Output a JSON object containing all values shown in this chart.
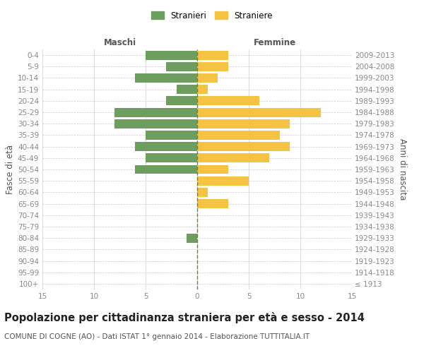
{
  "age_groups": [
    "100+",
    "95-99",
    "90-94",
    "85-89",
    "80-84",
    "75-79",
    "70-74",
    "65-69",
    "60-64",
    "55-59",
    "50-54",
    "45-49",
    "40-44",
    "35-39",
    "30-34",
    "25-29",
    "20-24",
    "15-19",
    "10-14",
    "5-9",
    "0-4"
  ],
  "birth_years": [
    "≤ 1913",
    "1914-1918",
    "1919-1923",
    "1924-1928",
    "1929-1933",
    "1934-1938",
    "1939-1943",
    "1944-1948",
    "1949-1953",
    "1954-1958",
    "1959-1963",
    "1964-1968",
    "1969-1973",
    "1974-1978",
    "1979-1983",
    "1984-1988",
    "1989-1993",
    "1994-1998",
    "1999-2003",
    "2004-2008",
    "2009-2013"
  ],
  "males": [
    0,
    0,
    0,
    0,
    1,
    0,
    0,
    0,
    0,
    0,
    6,
    5,
    6,
    5,
    8,
    8,
    3,
    2,
    6,
    3,
    5
  ],
  "females": [
    0,
    0,
    0,
    0,
    0,
    0,
    0,
    3,
    1,
    5,
    3,
    7,
    9,
    8,
    9,
    12,
    6,
    1,
    2,
    3,
    3
  ],
  "male_color": "#6e9e5f",
  "female_color": "#f5c242",
  "male_label": "Stranieri",
  "female_label": "Straniere",
  "title": "Popolazione per cittadinanza straniera per età e sesso - 2014",
  "subtitle": "COMUNE DI COGNE (AO) - Dati ISTAT 1° gennaio 2014 - Elaborazione TUTTITALIA.IT",
  "xlabel_left": "Maschi",
  "xlabel_right": "Femmine",
  "ylabel_left": "Fasce di età",
  "ylabel_right": "Anni di nascita",
  "xlim": 15,
  "background_color": "#ffffff",
  "grid_color": "#cccccc",
  "bar_height": 0.8,
  "center_line_color": "#7a7a3a",
  "axis_label_color": "#555555",
  "tick_label_color": "#888888",
  "title_fontsize": 10.5,
  "subtitle_fontsize": 7.5,
  "label_fontsize": 8.5,
  "tick_fontsize": 7.5,
  "legend_fontsize": 8.5
}
